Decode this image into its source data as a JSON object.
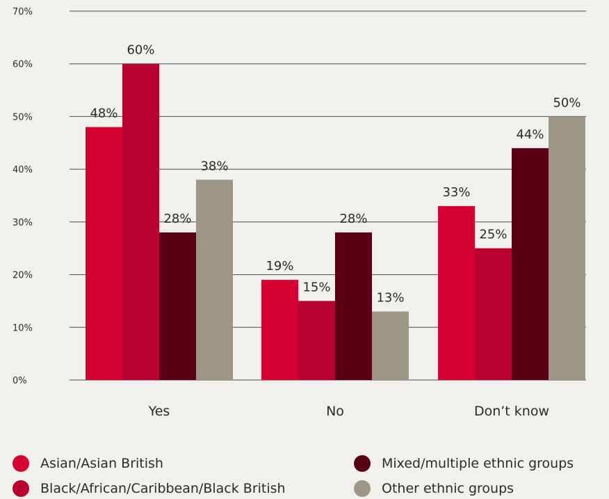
{
  "chart_data": {
    "type": "bar",
    "categories": [
      "Yes",
      "No",
      "Don’t know"
    ],
    "series": [
      {
        "name": "Asian/Asian British",
        "color": "#d50032",
        "values": [
          48,
          19,
          33
        ]
      },
      {
        "name": "Black/African/Caribbean/Black British",
        "color": "#b8002e",
        "values": [
          60,
          15,
          25
        ]
      },
      {
        "name": "Mixed/multiple ethnic groups",
        "color": "#5a0016",
        "values": [
          28,
          28,
          44
        ]
      },
      {
        "name": "Other ethnic groups",
        "color": "#9b9784",
        "values": [
          38,
          13,
          50
        ]
      }
    ],
    "value_labels": [
      [
        "48%",
        "19%",
        "33%"
      ],
      [
        "60%",
        "15%",
        "25%"
      ],
      [
        "28%",
        "28%",
        "44%"
      ],
      [
        "38%",
        "13%",
        "50%"
      ]
    ],
    "y_ticks": [
      "0%",
      "10%",
      "20%",
      "30%",
      "40%",
      "50%",
      "60%",
      "70%"
    ],
    "ylim": [
      0,
      70
    ],
    "grid": true,
    "legend_position": "bottom",
    "title": "",
    "xlabel": "",
    "ylabel": ""
  }
}
